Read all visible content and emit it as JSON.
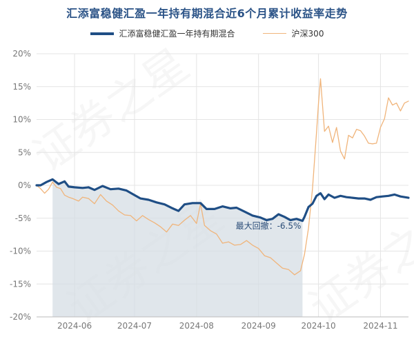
{
  "title": "汇添富稳健汇盈一年持有期混合近6个月累计收益率走势",
  "colors": {
    "fund": "#1f4e85",
    "index": "#f0b47a",
    "drawdown_fill": "#d5dde4",
    "grid": "#e4e4e4",
    "title": "#2b5387"
  },
  "chart_data": {
    "type": "line",
    "title": "汇添富稳健汇盈一年持有期混合近6个月累计收益率走势",
    "ylim": [
      -20,
      20
    ],
    "y_ticks": [
      20,
      15,
      10,
      5,
      0,
      -5,
      -10,
      -15,
      -20
    ],
    "y_tick_labels": [
      "20%",
      "15%",
      "10%",
      "5%",
      "0%",
      "-5%",
      "-10%",
      "-15%",
      "-20%"
    ],
    "x_tick_labels": [
      "2024-06",
      "2024-07",
      "2024-08",
      "2024-09",
      "2024-10",
      "2024-11"
    ],
    "x_ticks": [
      "2024-06-01",
      "2024-07-01",
      "2024-08-01",
      "2024-09-01",
      "2024-10-01",
      "2024-11-01"
    ],
    "x_range": [
      "2024-05-13",
      "2024-11-15"
    ],
    "grid": true,
    "legend_position": "top",
    "series": [
      {
        "name": "汇添富稳健汇盈一年持有期混合",
        "points": [
          [
            "2024-05-13",
            0.0
          ],
          [
            "2024-05-15",
            0.0
          ],
          [
            "2024-05-18",
            0.5
          ],
          [
            "2024-05-21",
            0.9
          ],
          [
            "2024-05-24",
            0.2
          ],
          [
            "2024-05-27",
            0.6
          ],
          [
            "2024-05-29",
            -0.2
          ],
          [
            "2024-06-01",
            -0.3
          ],
          [
            "2024-06-05",
            -0.4
          ],
          [
            "2024-06-08",
            -0.3
          ],
          [
            "2024-06-11",
            -0.7
          ],
          [
            "2024-06-15",
            -0.1
          ],
          [
            "2024-06-19",
            -0.6
          ],
          [
            "2024-06-23",
            -0.5
          ],
          [
            "2024-06-27",
            -0.8
          ],
          [
            "2024-07-01",
            -1.5
          ],
          [
            "2024-07-04",
            -2.0
          ],
          [
            "2024-07-08",
            -2.2
          ],
          [
            "2024-07-12",
            -2.6
          ],
          [
            "2024-07-16",
            -2.9
          ],
          [
            "2024-07-20",
            -3.5
          ],
          [
            "2024-07-23",
            -3.9
          ],
          [
            "2024-07-26",
            -2.9
          ],
          [
            "2024-07-30",
            -2.7
          ],
          [
            "2024-08-03",
            -2.7
          ],
          [
            "2024-08-06",
            -3.6
          ],
          [
            "2024-08-10",
            -3.6
          ],
          [
            "2024-08-14",
            -3.2
          ],
          [
            "2024-08-18",
            -3.5
          ],
          [
            "2024-08-21",
            -3.4
          ],
          [
            "2024-08-25",
            -4.0
          ],
          [
            "2024-08-29",
            -4.6
          ],
          [
            "2024-09-02",
            -4.9
          ],
          [
            "2024-09-05",
            -5.3
          ],
          [
            "2024-09-08",
            -5.1
          ],
          [
            "2024-09-11",
            -4.4
          ],
          [
            "2024-09-14",
            -4.8
          ],
          [
            "2024-09-17",
            -5.3
          ],
          [
            "2024-09-20",
            -5.1
          ],
          [
            "2024-09-23",
            -5.4
          ],
          [
            "2024-09-24",
            -4.8
          ],
          [
            "2024-09-26",
            -3.3
          ],
          [
            "2024-09-28",
            -2.8
          ],
          [
            "2024-09-30",
            -1.6
          ],
          [
            "2024-10-02",
            -1.2
          ],
          [
            "2024-10-04",
            -2.1
          ],
          [
            "2024-10-06",
            -1.4
          ],
          [
            "2024-10-09",
            -1.9
          ],
          [
            "2024-10-12",
            -1.6
          ],
          [
            "2024-10-15",
            -1.8
          ],
          [
            "2024-10-18",
            -1.9
          ],
          [
            "2024-10-21",
            -2.0
          ],
          [
            "2024-10-24",
            -2.0
          ],
          [
            "2024-10-27",
            -2.2
          ],
          [
            "2024-10-30",
            -1.8
          ],
          [
            "2024-11-02",
            -1.7
          ],
          [
            "2024-11-05",
            -1.6
          ],
          [
            "2024-11-08",
            -1.4
          ],
          [
            "2024-11-11",
            -1.7
          ],
          [
            "2024-11-15",
            -1.9
          ]
        ]
      },
      {
        "name": "沪深300",
        "points": [
          [
            "2024-05-13",
            0.0
          ],
          [
            "2024-05-15",
            -0.5
          ],
          [
            "2024-05-17",
            -1.2
          ],
          [
            "2024-05-19",
            -0.6
          ],
          [
            "2024-05-21",
            0.5
          ],
          [
            "2024-05-23",
            -0.3
          ],
          [
            "2024-05-25",
            -0.5
          ],
          [
            "2024-05-27",
            -1.5
          ],
          [
            "2024-05-29",
            -1.8
          ],
          [
            "2024-05-31",
            -2.0
          ],
          [
            "2024-06-03",
            -2.4
          ],
          [
            "2024-06-05",
            -1.8
          ],
          [
            "2024-06-08",
            -2.0
          ],
          [
            "2024-06-11",
            -2.8
          ],
          [
            "2024-06-14",
            -1.4
          ],
          [
            "2024-06-17",
            -2.4
          ],
          [
            "2024-06-20",
            -3.0
          ],
          [
            "2024-06-23",
            -3.9
          ],
          [
            "2024-06-26",
            -4.5
          ],
          [
            "2024-06-29",
            -4.6
          ],
          [
            "2024-07-02",
            -5.4
          ],
          [
            "2024-07-05",
            -4.6
          ],
          [
            "2024-07-08",
            -5.2
          ],
          [
            "2024-07-11",
            -5.7
          ],
          [
            "2024-07-14",
            -6.3
          ],
          [
            "2024-07-17",
            -7.1
          ],
          [
            "2024-07-20",
            -5.9
          ],
          [
            "2024-07-23",
            -6.1
          ],
          [
            "2024-07-26",
            -5.3
          ],
          [
            "2024-07-29",
            -4.6
          ],
          [
            "2024-08-01",
            -5.8
          ],
          [
            "2024-08-03",
            -2.8
          ],
          [
            "2024-08-05",
            -6.1
          ],
          [
            "2024-08-08",
            -6.9
          ],
          [
            "2024-08-11",
            -7.4
          ],
          [
            "2024-08-14",
            -8.8
          ],
          [
            "2024-08-17",
            -8.6
          ],
          [
            "2024-08-20",
            -9.1
          ],
          [
            "2024-08-23",
            -9.0
          ],
          [
            "2024-08-26",
            -8.4
          ],
          [
            "2024-08-29",
            -9.1
          ],
          [
            "2024-09-01",
            -9.6
          ],
          [
            "2024-09-04",
            -10.7
          ],
          [
            "2024-09-07",
            -11.0
          ],
          [
            "2024-09-10",
            -11.8
          ],
          [
            "2024-09-13",
            -12.6
          ],
          [
            "2024-09-16",
            -12.8
          ],
          [
            "2024-09-19",
            -13.6
          ],
          [
            "2024-09-22",
            -13.0
          ],
          [
            "2024-09-24",
            -10.5
          ],
          [
            "2024-09-26",
            -6.5
          ],
          [
            "2024-09-28",
            -0.5
          ],
          [
            "2024-09-30",
            8.0
          ],
          [
            "2024-10-01",
            12.5
          ],
          [
            "2024-10-02",
            16.2
          ],
          [
            "2024-10-04",
            8.2
          ],
          [
            "2024-10-06",
            9.0
          ],
          [
            "2024-10-08",
            6.5
          ],
          [
            "2024-10-10",
            8.8
          ],
          [
            "2024-10-12",
            5.2
          ],
          [
            "2024-10-14",
            4.0
          ],
          [
            "2024-10-16",
            7.6
          ],
          [
            "2024-10-18",
            7.2
          ],
          [
            "2024-10-20",
            8.5
          ],
          [
            "2024-10-22",
            8.3
          ],
          [
            "2024-10-24",
            7.5
          ],
          [
            "2024-10-26",
            6.4
          ],
          [
            "2024-10-28",
            6.3
          ],
          [
            "2024-10-30",
            6.4
          ],
          [
            "2024-11-01",
            8.8
          ],
          [
            "2024-11-03",
            10.1
          ],
          [
            "2024-11-05",
            13.3
          ],
          [
            "2024-11-07",
            12.2
          ],
          [
            "2024-11-09",
            12.5
          ],
          [
            "2024-11-11",
            11.3
          ],
          [
            "2024-11-13",
            12.5
          ],
          [
            "2024-11-15",
            12.8
          ]
        ]
      }
    ],
    "drawdown": {
      "label": "最大回撤：-6.5%",
      "start": "2024-05-21",
      "end": "2024-09-23"
    }
  },
  "watermark": "证券之星"
}
